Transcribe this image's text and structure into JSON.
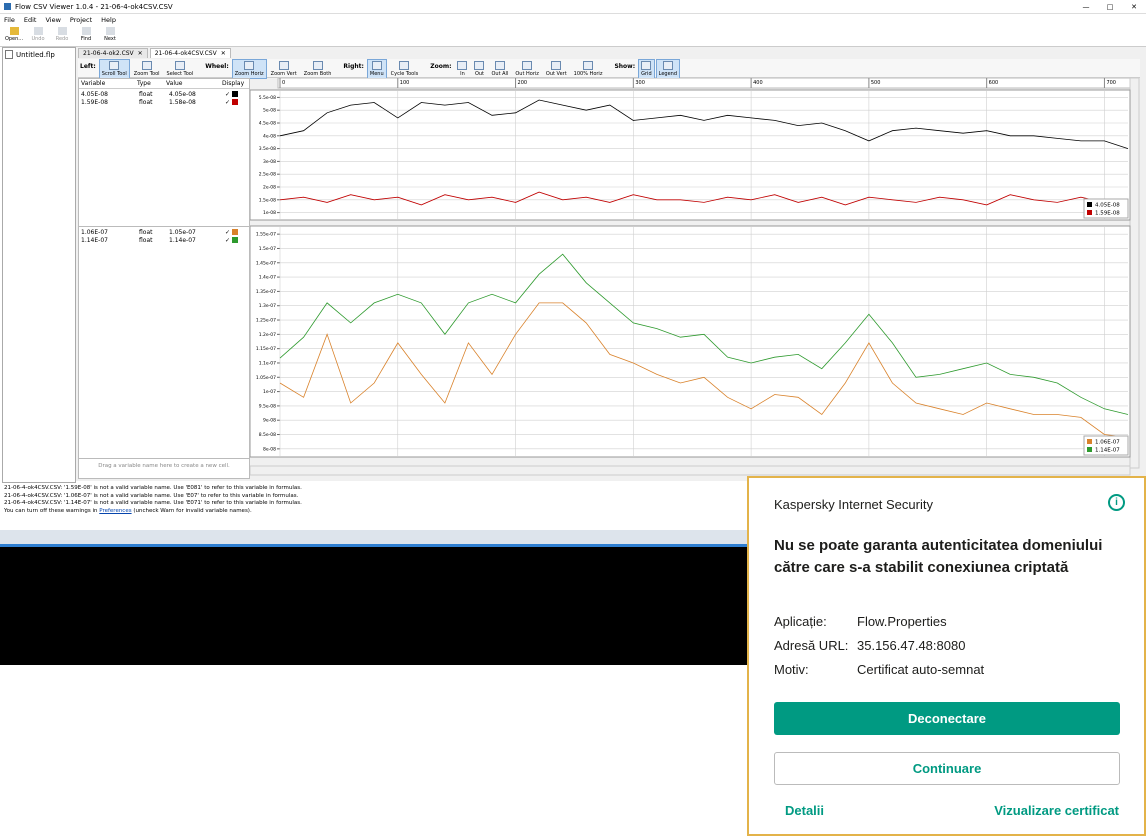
{
  "window": {
    "title": "Flow CSV Viewer 1.0.4 - 21-06-4-ok4CSV.CSV"
  },
  "menu": [
    "File",
    "Edit",
    "View",
    "Project",
    "Help"
  ],
  "toolbar": [
    "Open...",
    "Undo",
    "Redo",
    "Find",
    "Next"
  ],
  "project": "Untitled.flp",
  "tabs": [
    "21-06-4-ok2.CSV",
    "21-06-4-ok4CSV.CSV"
  ],
  "ribbon": [
    {
      "label": "Left:",
      "buttons": [
        "Scroll Tool",
        "Zoom Tool",
        "Select Tool"
      ]
    },
    {
      "label": "Wheel:",
      "buttons": [
        "Zoom Horiz",
        "Zoom Vert",
        "Zoom Both"
      ]
    },
    {
      "label": "Right:",
      "buttons": [
        "Menu",
        "Cycle Tools"
      ]
    },
    {
      "label": "Zoom:",
      "buttons": [
        "In",
        "Out",
        "Out All",
        "Out Horiz",
        "Out Vert",
        "100% Horiz"
      ]
    },
    {
      "label": "Show:",
      "buttons": [
        "Grid",
        "Legend"
      ]
    }
  ],
  "table": {
    "headers": [
      "Variable",
      "Type",
      "Value",
      "Display"
    ],
    "cells": [
      [
        [
          "4.05E-08",
          "float",
          "4.05e-08"
        ],
        [
          "1.59E-08",
          "float",
          "1.58e-08"
        ]
      ],
      [
        [
          "1.06E-07",
          "float",
          "1.05e-07"
        ],
        [
          "1.14E-07",
          "float",
          "1.14e-07"
        ]
      ]
    ],
    "footer": "Drag a variable name here to create a new cell."
  },
  "chart_data": [
    {
      "type": "line",
      "legend": "lower right",
      "grid": true,
      "x": [
        0,
        20,
        40,
        60,
        80,
        100,
        120,
        140,
        160,
        180,
        200,
        220,
        240,
        260,
        280,
        300,
        320,
        340,
        360,
        380,
        400,
        420,
        440,
        460,
        480,
        500,
        520,
        540,
        560,
        580,
        600,
        620,
        640,
        660,
        680,
        700,
        720
      ],
      "xlim": [
        0,
        720
      ],
      "xticks": [
        0,
        100,
        200,
        300,
        400,
        500,
        600,
        700
      ],
      "ylim": [
        7.5e-09,
        5.75e-08
      ],
      "yticks": [
        {
          "value": 5.5e-08,
          "label": "5.5e-08"
        },
        {
          "value": 5e-08,
          "label": "5e-08"
        },
        {
          "value": 4.5e-08,
          "label": "4.5e-08"
        },
        {
          "value": 4e-08,
          "label": "4e-08"
        },
        {
          "value": 3.5e-08,
          "label": "3.5e-08"
        },
        {
          "value": 3e-08,
          "label": "3e-08"
        },
        {
          "value": 2.5e-08,
          "label": "2.5e-08"
        },
        {
          "value": 2e-08,
          "label": "2e-08"
        },
        {
          "value": 1.5e-08,
          "label": "1.5e-08"
        },
        {
          "value": 1e-08,
          "label": "1e-08"
        }
      ],
      "series": [
        {
          "name": "4.05E-08",
          "color": "#000000",
          "values": [
            4e-08,
            4.2e-08,
            4.9e-08,
            5.2e-08,
            5.3e-08,
            4.7e-08,
            5.3e-08,
            5.2e-08,
            5.3e-08,
            4.8e-08,
            4.9e-08,
            5.4e-08,
            5.2e-08,
            5e-08,
            5.2e-08,
            4.6e-08,
            4.7e-08,
            4.8e-08,
            4.6e-08,
            4.8e-08,
            4.7e-08,
            4.6e-08,
            4.4e-08,
            4.5e-08,
            4.2e-08,
            3.8e-08,
            4.2e-08,
            4.3e-08,
            4.2e-08,
            4.1e-08,
            4.2e-08,
            4e-08,
            4e-08,
            3.9e-08,
            3.8e-08,
            3.8e-08,
            3.5e-08
          ]
        },
        {
          "name": "1.59E-08",
          "color": "#c00000",
          "values": [
            1.5e-08,
            1.6e-08,
            1.4e-08,
            1.7e-08,
            1.5e-08,
            1.6e-08,
            1.3e-08,
            1.7e-08,
            1.5e-08,
            1.6e-08,
            1.4e-08,
            1.8e-08,
            1.5e-08,
            1.6e-08,
            1.4e-08,
            1.7e-08,
            1.5e-08,
            1.5e-08,
            1.4e-08,
            1.6e-08,
            1.5e-08,
            1.7e-08,
            1.4e-08,
            1.6e-08,
            1.3e-08,
            1.6e-08,
            1.5e-08,
            1.4e-08,
            1.6e-08,
            1.5e-08,
            1.3e-08,
            1.7e-08,
            1.5e-08,
            1.4e-08,
            1.6e-08,
            1.4e-08,
            1.5e-08
          ]
        }
      ]
    },
    {
      "type": "line",
      "legend": "lower right",
      "grid": true,
      "x": [
        0,
        20,
        40,
        60,
        80,
        100,
        120,
        140,
        160,
        180,
        200,
        220,
        240,
        260,
        280,
        300,
        320,
        340,
        360,
        380,
        400,
        420,
        440,
        460,
        480,
        500,
        520,
        540,
        560,
        580,
        600,
        620,
        640,
        660,
        680,
        700,
        720
      ],
      "xlim": [
        0,
        720
      ],
      "xticks": [
        0,
        100,
        200,
        300,
        400,
        500,
        600,
        700
      ],
      "ylim": [
        7.75e-08,
        1.575e-07
      ],
      "yticks": [
        {
          "value": 1.55e-07,
          "label": "1.55e-07"
        },
        {
          "value": 1.5e-07,
          "label": "1.5e-07"
        },
        {
          "value": 1.45e-07,
          "label": "1.45e-07"
        },
        {
          "value": 1.4e-07,
          "label": "1.4e-07"
        },
        {
          "value": 1.35e-07,
          "label": "1.35e-07"
        },
        {
          "value": 1.3e-07,
          "label": "1.3e-07"
        },
        {
          "value": 1.25e-07,
          "label": "1.25e-07"
        },
        {
          "value": 1.2e-07,
          "label": "1.2e-07"
        },
        {
          "value": 1.15e-07,
          "label": "1.15e-07"
        },
        {
          "value": 1.1e-07,
          "label": "1.1e-07"
        },
        {
          "value": 1.05e-07,
          "label": "1.05e-07"
        },
        {
          "value": 1e-07,
          "label": "1e-07"
        },
        {
          "value": 9.5e-08,
          "label": "9.5e-08"
        },
        {
          "value": 9e-08,
          "label": "9e-08"
        },
        {
          "value": 8.5e-08,
          "label": "8.5e-08"
        },
        {
          "value": 8e-08,
          "label": "8e-08"
        }
      ],
      "series": [
        {
          "name": "1.06E-07",
          "color": "#d9822b",
          "values": [
            1.03e-07,
            9.8e-08,
            1.2e-07,
            9.6e-08,
            1.03e-07,
            1.17e-07,
            1.06e-07,
            9.6e-08,
            1.17e-07,
            1.06e-07,
            1.2e-07,
            1.31e-07,
            1.31e-07,
            1.24e-07,
            1.13e-07,
            1.1e-07,
            1.06e-07,
            1.03e-07,
            1.05e-07,
            9.8e-08,
            9.4e-08,
            9.9e-08,
            9.8e-08,
            9.2e-08,
            1.03e-07,
            1.17e-07,
            1.03e-07,
            9.6e-08,
            9.4e-08,
            9.2e-08,
            9.6e-08,
            9.4e-08,
            9.2e-08,
            9.2e-08,
            9.1e-08,
            8.5e-08,
            8.4e-08
          ]
        },
        {
          "name": "1.14E-07",
          "color": "#2e9a2e",
          "values": [
            1.117e-07,
            1.19e-07,
            1.31e-07,
            1.24e-07,
            1.31e-07,
            1.34e-07,
            1.31e-07,
            1.2e-07,
            1.31e-07,
            1.34e-07,
            1.31e-07,
            1.41e-07,
            1.48e-07,
            1.38e-07,
            1.31e-07,
            1.24e-07,
            1.22e-07,
            1.19e-07,
            1.2e-07,
            1.12e-07,
            1.1e-07,
            1.12e-07,
            1.13e-07,
            1.08e-07,
            1.17e-07,
            1.27e-07,
            1.17e-07,
            1.05e-07,
            1.06e-07,
            1.08e-07,
            1.1e-07,
            1.06e-07,
            1.05e-07,
            1.03e-07,
            9.8e-08,
            9.4e-08,
            9.2e-08
          ]
        }
      ]
    }
  ],
  "log": [
    "21-06-4-ok4CSV.CSV: '1.59E-08' is not a valid variable name. Use 'E081' to refer to this variable in formulas.",
    "21-06-4-ok4CSV.CSV: '1.06E-07' is not a valid variable name. Use 'E07' to refer to this variable in formulas.",
    "21-06-4-ok4CSV.CSV: '1.14E-07' is not a valid variable name. Use 'E071' to refer to this variable in formulas."
  ],
  "log_hint": {
    "before": "You can turn off these warnings in ",
    "link": "Preferences",
    "after": " (uncheck Warn for invalid variable names)."
  },
  "popup": {
    "app": "Kaspersky Internet Security",
    "heading": "Nu se poate garanta autenticitatea domeniului către care s-a stabilit conexiunea criptată",
    "details": [
      [
        "Aplicație:",
        "Flow.Properties"
      ],
      [
        "Adresă URL:",
        "35.156.47.48:8080"
      ],
      [
        "Motiv:",
        "Certificat auto-semnat"
      ]
    ],
    "primary": "Deconectare",
    "secondary": "Continuare",
    "link_left": "Detalii",
    "link_right": "Vizualizare certificat"
  }
}
